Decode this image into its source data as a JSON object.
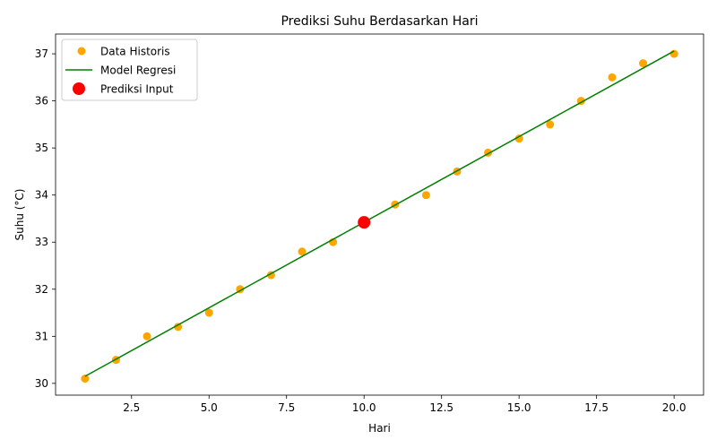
{
  "chart_data": {
    "type": "scatter",
    "title": "Prediksi Suhu Berdasarkan Hari",
    "xlabel": "Hari",
    "ylabel": "Suhu (°C)",
    "xlim": [
      0.05,
      20.95
    ],
    "ylim": [
      29.75,
      37.42
    ],
    "xticks": [
      2.5,
      5.0,
      7.5,
      10.0,
      12.5,
      15.0,
      17.5,
      20.0
    ],
    "xtick_labels": [
      "2.5",
      "5.0",
      "7.5",
      "10.0",
      "12.5",
      "15.0",
      "17.5",
      "20.0"
    ],
    "yticks": [
      30,
      31,
      32,
      33,
      34,
      35,
      36,
      37
    ],
    "ytick_labels": [
      "30",
      "31",
      "32",
      "33",
      "34",
      "35",
      "36",
      "37"
    ],
    "legend_position": "top-left",
    "series": [
      {
        "name": "Data Historis",
        "kind": "scatter",
        "color": "#ffa500",
        "x": [
          1,
          2,
          3,
          4,
          5,
          6,
          7,
          8,
          9,
          10,
          11,
          12,
          13,
          14,
          15,
          16,
          17,
          18,
          19,
          20
        ],
        "y": [
          30.1,
          30.5,
          31.0,
          31.2,
          31.5,
          32.0,
          32.3,
          32.8,
          33.0,
          33.4,
          33.8,
          34.0,
          34.5,
          34.9,
          35.2,
          35.5,
          36.0,
          36.5,
          36.8,
          37.0
        ]
      },
      {
        "name": "Model Regresi",
        "kind": "line",
        "color": "#008000",
        "x": [
          1,
          20
        ],
        "y": [
          30.15,
          37.06
        ]
      },
      {
        "name": "Prediksi Input",
        "kind": "scatter",
        "color": "#ff0000",
        "x": [
          10
        ],
        "y": [
          33.42
        ]
      }
    ]
  }
}
